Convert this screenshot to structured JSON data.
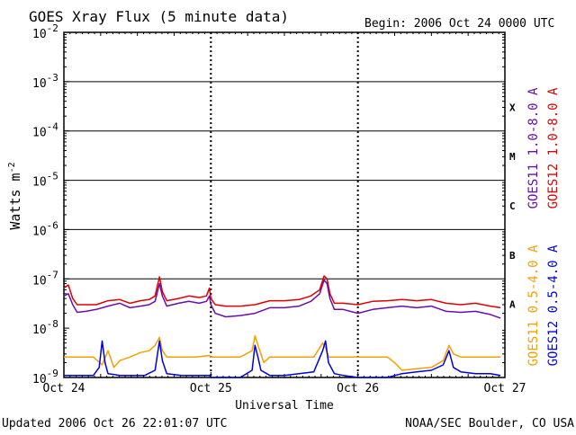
{
  "chart_data": {
    "type": "line",
    "title": "GOES Xray Flux (5 minute data)",
    "begin_label": "Begin:  2006 Oct 24 0000 UTC",
    "xlabel": "Universal Time",
    "ylabel_main": "Watts m",
    "ylabel_exp": "-2",
    "x_ticks": [
      "Oct 24",
      "Oct 25",
      "Oct 26",
      "Oct 27"
    ],
    "xlim_days": [
      0,
      3
    ],
    "y_scale": "log",
    "ylim": [
      1e-09,
      0.01
    ],
    "y_ticks": [
      {
        "base": "10",
        "exp": "-2"
      },
      {
        "base": "10",
        "exp": "-3"
      },
      {
        "base": "10",
        "exp": "-4"
      },
      {
        "base": "10",
        "exp": "-5"
      },
      {
        "base": "10",
        "exp": "-6"
      },
      {
        "base": "10",
        "exp": "-7"
      },
      {
        "base": "10",
        "exp": "-8"
      },
      {
        "base": "10",
        "exp": "-9"
      }
    ],
    "flare_classes": [
      "X",
      "M",
      "C",
      "B",
      "A"
    ],
    "flare_class_log_centers": [
      -3.5,
      -4.5,
      -5.5,
      -6.5,
      -7.5
    ],
    "grid_log_levels": [
      -3,
      -4,
      -5,
      -6,
      -7
    ],
    "legend_top": [
      {
        "name": "GOES11 1.0-8.0 A",
        "color": "#6a0dad"
      },
      {
        "name": "GOES12 1.0-8.0 A",
        "color": "#e00000"
      }
    ],
    "legend_bottom": [
      {
        "name": "GOES11 0.5-4.0 A",
        "color": "#f5a000"
      },
      {
        "name": "GOES12 0.5-4.0 A",
        "color": "#0000e0"
      }
    ],
    "series": [
      {
        "name": "GOES12 1.0-8.0 A",
        "color": "#e00000",
        "points": [
          [
            0.0,
            6.5e-08
          ],
          [
            0.03,
            7.5e-08
          ],
          [
            0.06,
            4e-08
          ],
          [
            0.09,
            3e-08
          ],
          [
            0.15,
            3e-08
          ],
          [
            0.22,
            3e-08
          ],
          [
            0.3,
            3.6e-08
          ],
          [
            0.38,
            3.8e-08
          ],
          [
            0.45,
            3.2e-08
          ],
          [
            0.52,
            3.6e-08
          ],
          [
            0.58,
            3.8e-08
          ],
          [
            0.62,
            4.5e-08
          ],
          [
            0.65,
            1.1e-07
          ],
          [
            0.67,
            5.5e-08
          ],
          [
            0.7,
            3.6e-08
          ],
          [
            0.78,
            4e-08
          ],
          [
            0.85,
            4.5e-08
          ],
          [
            0.92,
            4.2e-08
          ],
          [
            0.97,
            4.5e-08
          ],
          [
            0.99,
            6.5e-08
          ],
          [
            1.0,
            4e-08
          ],
          [
            1.03,
            3e-08
          ],
          [
            1.1,
            2.8e-08
          ],
          [
            1.2,
            2.8e-08
          ],
          [
            1.3,
            3e-08
          ],
          [
            1.4,
            3.6e-08
          ],
          [
            1.5,
            3.6e-08
          ],
          [
            1.6,
            3.8e-08
          ],
          [
            1.68,
            4.5e-08
          ],
          [
            1.74,
            6e-08
          ],
          [
            1.77,
            1.15e-07
          ],
          [
            1.79,
            1e-07
          ],
          [
            1.81,
            5e-08
          ],
          [
            1.84,
            3.2e-08
          ],
          [
            1.9,
            3.2e-08
          ],
          [
            2.0,
            3e-08
          ],
          [
            2.1,
            3.5e-08
          ],
          [
            2.2,
            3.6e-08
          ],
          [
            2.3,
            3.8e-08
          ],
          [
            2.4,
            3.6e-08
          ],
          [
            2.5,
            3.8e-08
          ],
          [
            2.6,
            3.2e-08
          ],
          [
            2.7,
            3e-08
          ],
          [
            2.8,
            3.2e-08
          ],
          [
            2.9,
            2.8e-08
          ],
          [
            2.97,
            2.6e-08
          ]
        ]
      },
      {
        "name": "GOES11 1.0-8.0 A",
        "color": "#6a0dad",
        "points": [
          [
            0.0,
            4.5e-08
          ],
          [
            0.03,
            5e-08
          ],
          [
            0.06,
            3e-08
          ],
          [
            0.09,
            2.1e-08
          ],
          [
            0.15,
            2.2e-08
          ],
          [
            0.22,
            2.4e-08
          ],
          [
            0.3,
            2.8e-08
          ],
          [
            0.38,
            3.2e-08
          ],
          [
            0.45,
            2.6e-08
          ],
          [
            0.52,
            2.8e-08
          ],
          [
            0.58,
            3e-08
          ],
          [
            0.62,
            3.5e-08
          ],
          [
            0.65,
            8e-08
          ],
          [
            0.67,
            4.5e-08
          ],
          [
            0.7,
            2.8e-08
          ],
          [
            0.78,
            3.2e-08
          ],
          [
            0.85,
            3.5e-08
          ],
          [
            0.92,
            3.2e-08
          ],
          [
            0.97,
            3.5e-08
          ],
          [
            0.99,
            4.5e-08
          ],
          [
            1.0,
            3e-08
          ],
          [
            1.03,
            2e-08
          ],
          [
            1.1,
            1.7e-08
          ],
          [
            1.2,
            1.8e-08
          ],
          [
            1.3,
            2e-08
          ],
          [
            1.4,
            2.6e-08
          ],
          [
            1.5,
            2.6e-08
          ],
          [
            1.6,
            2.8e-08
          ],
          [
            1.68,
            3.5e-08
          ],
          [
            1.74,
            5e-08
          ],
          [
            1.77,
            9.5e-08
          ],
          [
            1.79,
            8e-08
          ],
          [
            1.81,
            4e-08
          ],
          [
            1.84,
            2.4e-08
          ],
          [
            1.9,
            2.4e-08
          ],
          [
            2.0,
            2e-08
          ],
          [
            2.1,
            2.4e-08
          ],
          [
            2.2,
            2.6e-08
          ],
          [
            2.3,
            2.8e-08
          ],
          [
            2.4,
            2.6e-08
          ],
          [
            2.5,
            2.8e-08
          ],
          [
            2.6,
            2.2e-08
          ],
          [
            2.7,
            2.1e-08
          ],
          [
            2.8,
            2.2e-08
          ],
          [
            2.9,
            1.9e-08
          ],
          [
            2.97,
            1.6e-08
          ]
        ]
      },
      {
        "name": "GOES11 0.5-4.0 A",
        "color": "#f5a000",
        "points": [
          [
            0.0,
            2.6e-09
          ],
          [
            0.1,
            2.6e-09
          ],
          [
            0.2,
            2.6e-09
          ],
          [
            0.26,
            1.8e-09
          ],
          [
            0.3,
            3.5e-09
          ],
          [
            0.34,
            1.6e-09
          ],
          [
            0.38,
            2.2e-09
          ],
          [
            0.45,
            2.6e-09
          ],
          [
            0.52,
            3.2e-09
          ],
          [
            0.58,
            3.5e-09
          ],
          [
            0.62,
            4.5e-09
          ],
          [
            0.65,
            6.5e-09
          ],
          [
            0.67,
            3.5e-09
          ],
          [
            0.7,
            2.6e-09
          ],
          [
            0.8,
            2.6e-09
          ],
          [
            0.9,
            2.6e-09
          ],
          [
            0.99,
            2.8e-09
          ],
          [
            1.0,
            2.6e-09
          ],
          [
            1.1,
            2.6e-09
          ],
          [
            1.2,
            2.6e-09
          ],
          [
            1.28,
            3.5e-09
          ],
          [
            1.3,
            7e-09
          ],
          [
            1.32,
            4.5e-09
          ],
          [
            1.34,
            3e-09
          ],
          [
            1.36,
            2e-09
          ],
          [
            1.4,
            2.6e-09
          ],
          [
            1.5,
            2.6e-09
          ],
          [
            1.6,
            2.6e-09
          ],
          [
            1.7,
            2.6e-09
          ],
          [
            1.76,
            5e-09
          ],
          [
            1.78,
            4e-09
          ],
          [
            1.8,
            2.6e-09
          ],
          [
            1.9,
            2.6e-09
          ],
          [
            2.0,
            2.6e-09
          ],
          [
            2.1,
            2.6e-09
          ],
          [
            2.2,
            2.6e-09
          ],
          [
            2.25,
            2e-09
          ],
          [
            2.3,
            1.4e-09
          ],
          [
            2.4,
            1.5e-09
          ],
          [
            2.5,
            1.6e-09
          ],
          [
            2.58,
            2.2e-09
          ],
          [
            2.62,
            4.5e-09
          ],
          [
            2.65,
            3e-09
          ],
          [
            2.7,
            2.6e-09
          ],
          [
            2.8,
            2.6e-09
          ],
          [
            2.9,
            2.6e-09
          ],
          [
            2.97,
            2.6e-09
          ]
        ]
      },
      {
        "name": "GOES12 0.5-4.0 A",
        "color": "#0000e0",
        "points": [
          [
            0.0,
            1.1e-09
          ],
          [
            0.1,
            1.1e-09
          ],
          [
            0.2,
            1.1e-09
          ],
          [
            0.24,
            1.6e-09
          ],
          [
            0.26,
            5.5e-09
          ],
          [
            0.28,
            2e-09
          ],
          [
            0.3,
            1.2e-09
          ],
          [
            0.38,
            1.1e-09
          ],
          [
            0.45,
            1.1e-09
          ],
          [
            0.55,
            1.1e-09
          ],
          [
            0.62,
            1.4e-09
          ],
          [
            0.65,
            5.5e-09
          ],
          [
            0.67,
            2.2e-09
          ],
          [
            0.7,
            1.2e-09
          ],
          [
            0.8,
            1.1e-09
          ],
          [
            0.9,
            1.1e-09
          ],
          [
            0.99,
            1.1e-09
          ],
          [
            1.0,
            1e-09
          ],
          [
            1.1,
            1e-09
          ],
          [
            1.2,
            1e-09
          ],
          [
            1.28,
            1.4e-09
          ],
          [
            1.3,
            4.5e-09
          ],
          [
            1.32,
            2.6e-09
          ],
          [
            1.34,
            1.4e-09
          ],
          [
            1.4,
            1.1e-09
          ],
          [
            1.5,
            1.1e-09
          ],
          [
            1.6,
            1.2e-09
          ],
          [
            1.7,
            1.3e-09
          ],
          [
            1.76,
            3.5e-09
          ],
          [
            1.78,
            5.5e-09
          ],
          [
            1.8,
            2e-09
          ],
          [
            1.84,
            1.2e-09
          ],
          [
            1.9,
            1.1e-09
          ],
          [
            2.0,
            1e-09
          ],
          [
            2.1,
            1e-09
          ],
          [
            2.2,
            1e-09
          ],
          [
            2.3,
            1.2e-09
          ],
          [
            2.4,
            1.3e-09
          ],
          [
            2.5,
            1.4e-09
          ],
          [
            2.58,
            1.8e-09
          ],
          [
            2.62,
            3.5e-09
          ],
          [
            2.65,
            1.6e-09
          ],
          [
            2.7,
            1.3e-09
          ],
          [
            2.8,
            1.2e-09
          ],
          [
            2.9,
            1.2e-09
          ],
          [
            2.97,
            1.1e-09
          ]
        ]
      }
    ]
  },
  "footer": {
    "updated": "Updated 2006 Oct 26 22:01:07 UTC",
    "source": "NOAA/SEC Boulder, CO USA"
  }
}
